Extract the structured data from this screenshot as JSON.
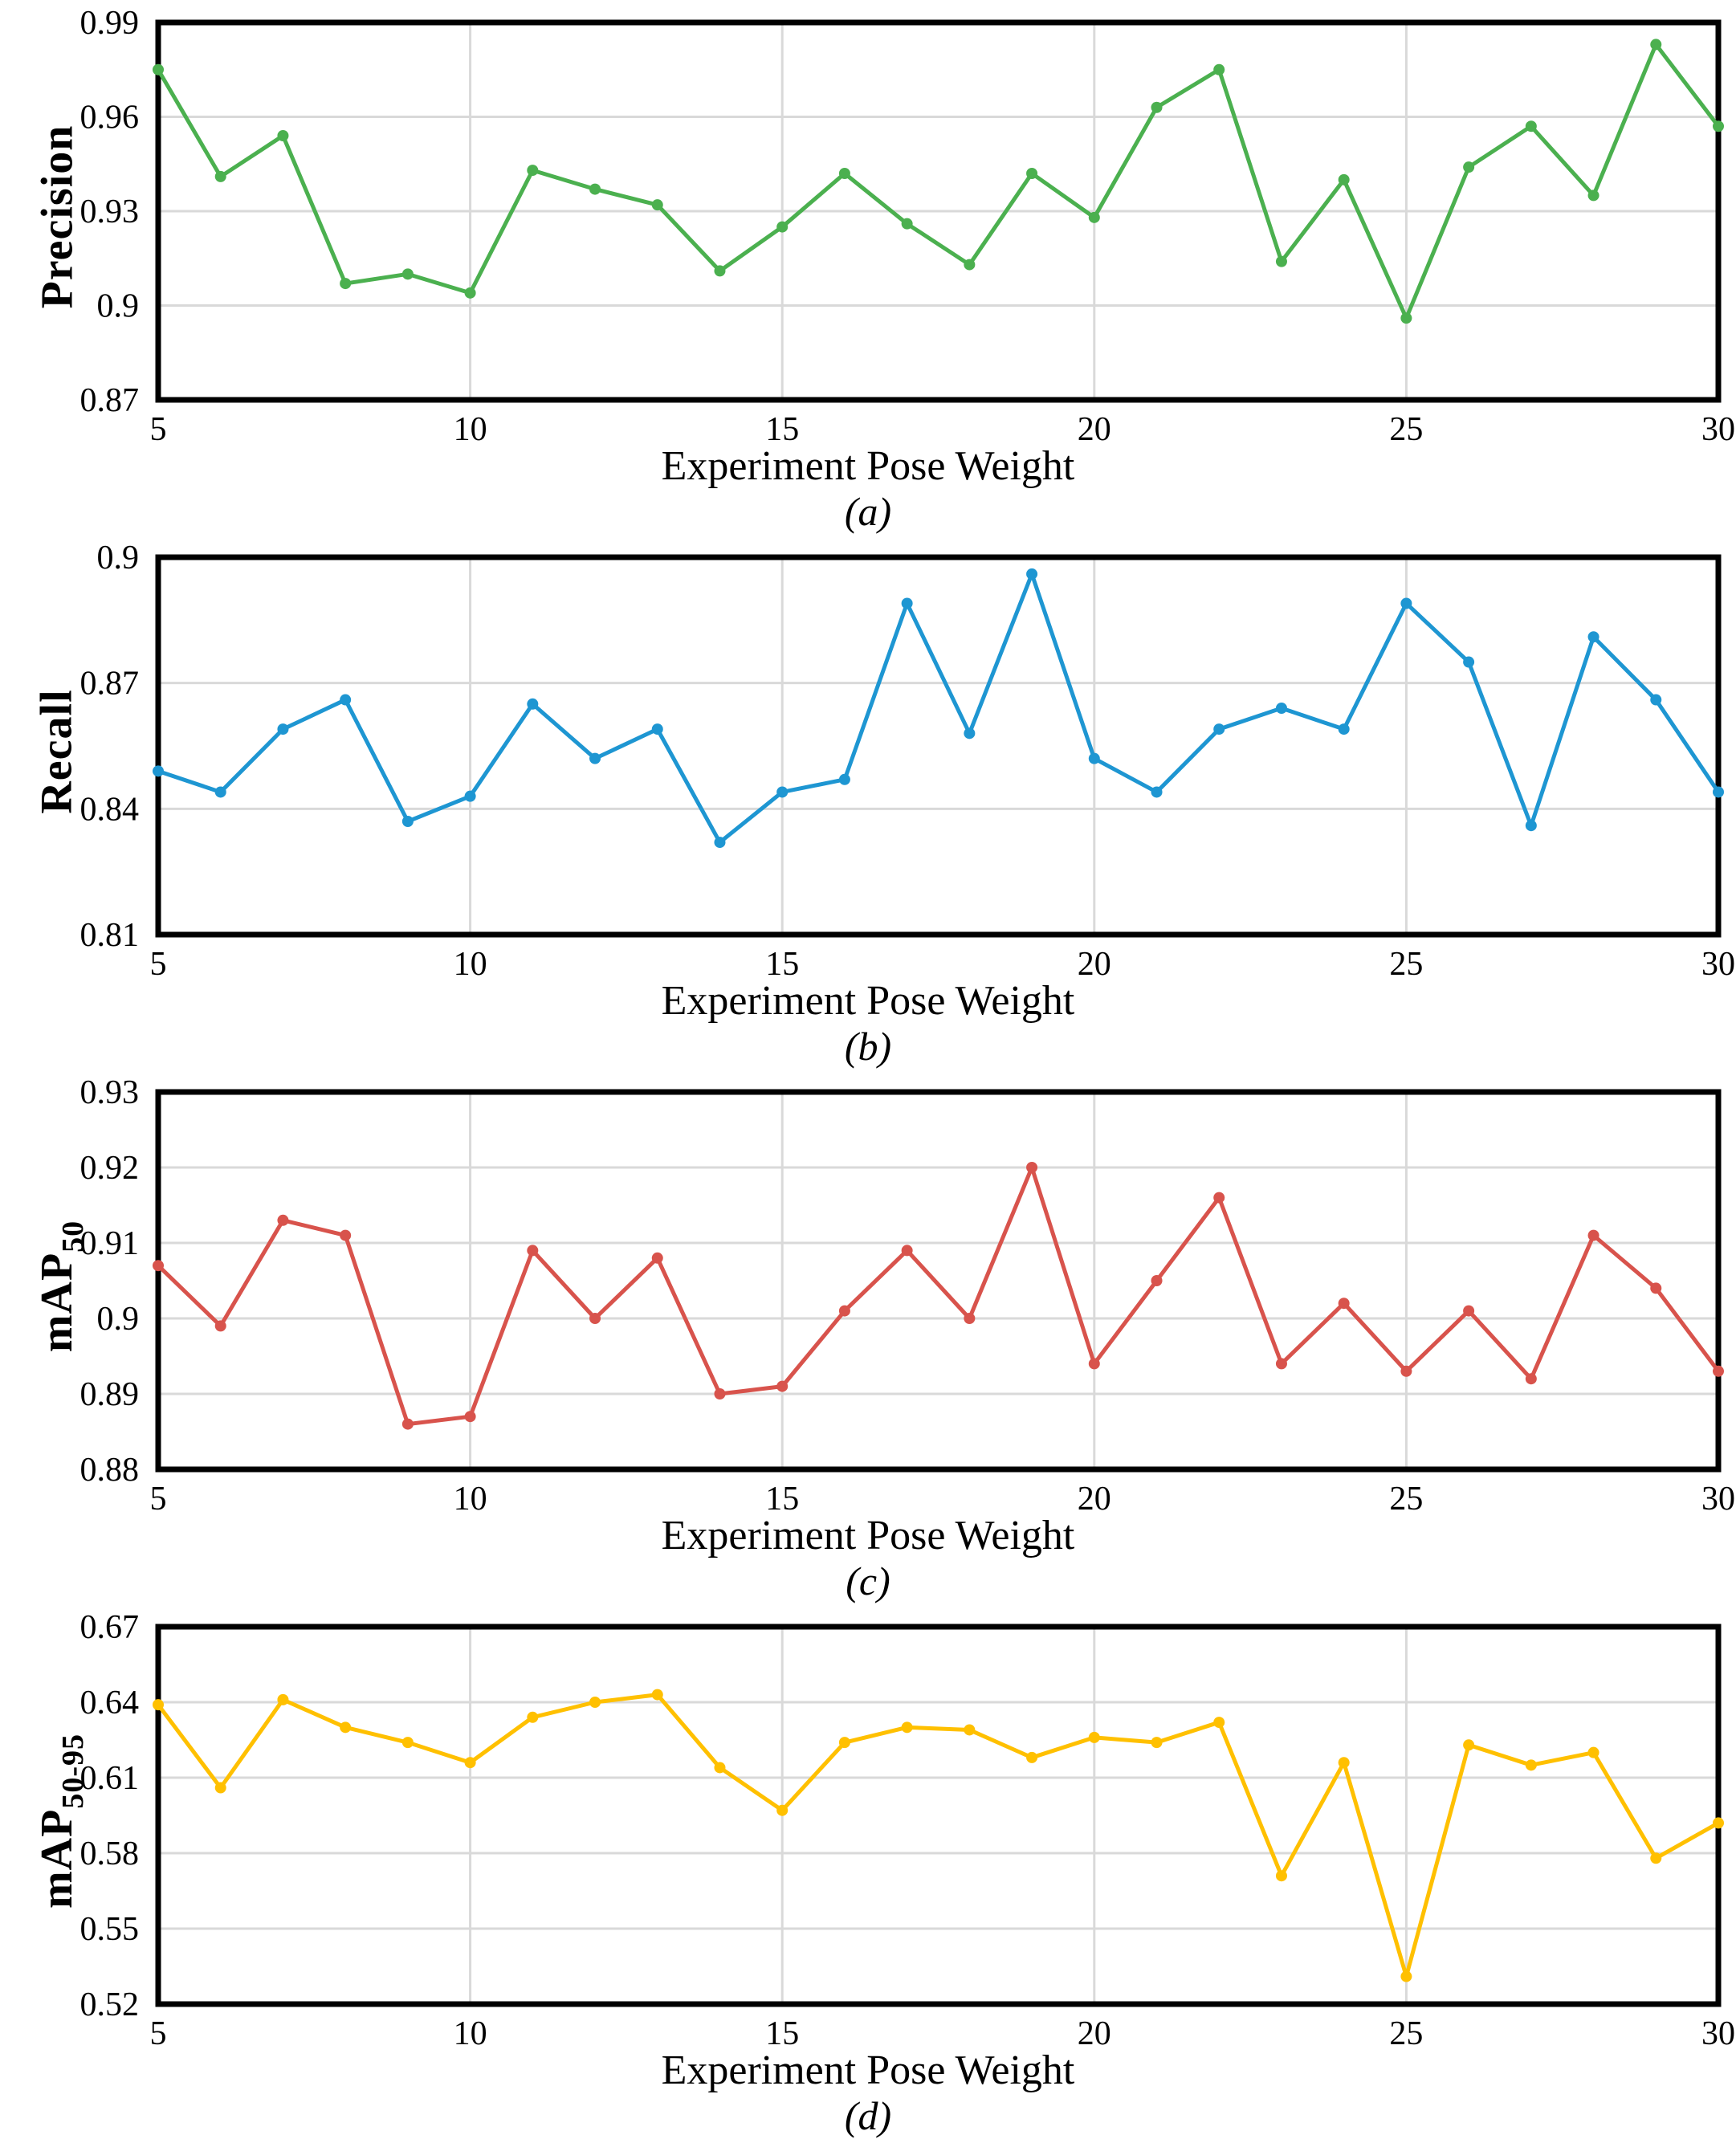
{
  "figure": {
    "xlabel": "Experiment Pose Weight",
    "x_range": [
      5,
      30
    ],
    "x_ticks": [
      5,
      10,
      15,
      20,
      25,
      30
    ],
    "x_tick_labels": [
      "5",
      "10",
      "15",
      "20",
      "25",
      "30"
    ],
    "frame_color": "#000000",
    "grid_color": "#d9d9d9",
    "background": "#ffffff"
  },
  "chart_data": [
    {
      "type": "line",
      "panel": "a",
      "caption": "(a)",
      "title": "",
      "ylabel": "Precision",
      "ylabel_sub": "",
      "xlabel": "Experiment Pose Weight",
      "color": "#4bb04f",
      "ylim": [
        0.87,
        0.99
      ],
      "yticks": [
        0.87,
        0.9,
        0.93,
        0.96,
        0.99
      ],
      "ytick_labels": [
        "0.87",
        "0.9",
        "0.93",
        "0.96",
        "0.99"
      ],
      "grid": true,
      "legend": "none",
      "x": [
        5,
        6,
        7,
        8,
        9,
        10,
        11,
        12,
        13,
        14,
        15,
        16,
        17,
        18,
        19,
        20,
        21,
        22,
        23,
        24,
        25,
        26,
        27,
        28,
        29,
        30
      ],
      "values": [
        0.975,
        0.941,
        0.954,
        0.907,
        0.91,
        0.904,
        0.943,
        0.937,
        0.932,
        0.911,
        0.925,
        0.942,
        0.926,
        0.913,
        0.942,
        0.928,
        0.963,
        0.975,
        0.914,
        0.94,
        0.896,
        0.944,
        0.957,
        0.935,
        0.983,
        0.957
      ]
    },
    {
      "type": "line",
      "panel": "b",
      "caption": "(b)",
      "title": "",
      "ylabel": "Recall",
      "ylabel_sub": "",
      "xlabel": "Experiment Pose Weight",
      "color": "#1e96d2",
      "ylim": [
        0.81,
        0.9
      ],
      "yticks": [
        0.81,
        0.84,
        0.87,
        0.9
      ],
      "ytick_labels": [
        "0.81",
        "0.84",
        "0.87",
        "0.9"
      ],
      "grid": true,
      "legend": "none",
      "x": [
        5,
        6,
        7,
        8,
        9,
        10,
        11,
        12,
        13,
        14,
        15,
        16,
        17,
        18,
        19,
        20,
        21,
        22,
        23,
        24,
        25,
        26,
        27,
        28,
        29,
        30
      ],
      "values": [
        0.849,
        0.844,
        0.859,
        0.866,
        0.837,
        0.843,
        0.865,
        0.852,
        0.859,
        0.832,
        0.844,
        0.847,
        0.889,
        0.858,
        0.896,
        0.852,
        0.844,
        0.859,
        0.864,
        0.859,
        0.889,
        0.875,
        0.836,
        0.881,
        0.866,
        0.844
      ]
    },
    {
      "type": "line",
      "panel": "c",
      "caption": "(c)",
      "title": "",
      "ylabel": "mAP",
      "ylabel_sub": "50",
      "xlabel": "Experiment Pose Weight",
      "color": "#d8534c",
      "ylim": [
        0.88,
        0.93
      ],
      "yticks": [
        0.88,
        0.89,
        0.9,
        0.91,
        0.92,
        0.93
      ],
      "ytick_labels": [
        "0.88",
        "0.89",
        "0.9",
        "0.91",
        "0.92",
        "0.93"
      ],
      "grid": true,
      "legend": "none",
      "x": [
        5,
        6,
        7,
        8,
        9,
        10,
        11,
        12,
        13,
        14,
        15,
        16,
        17,
        18,
        19,
        20,
        21,
        22,
        23,
        24,
        25,
        26,
        27,
        28,
        29,
        30
      ],
      "values": [
        0.907,
        0.899,
        0.913,
        0.911,
        0.886,
        0.887,
        0.909,
        0.9,
        0.908,
        0.89,
        0.891,
        0.901,
        0.909,
        0.9,
        0.92,
        0.894,
        0.905,
        0.916,
        0.894,
        0.902,
        0.893,
        0.901,
        0.892,
        0.911,
        0.904,
        0.893
      ]
    },
    {
      "type": "line",
      "panel": "d",
      "caption": "(d)",
      "title": "",
      "ylabel": "mAP",
      "ylabel_sub": "50-95",
      "xlabel": "Experiment Pose Weight",
      "color": "#ffc000",
      "ylim": [
        0.52,
        0.67
      ],
      "yticks": [
        0.52,
        0.55,
        0.58,
        0.61,
        0.64,
        0.67
      ],
      "ytick_labels": [
        "0.52",
        "0.55",
        "0.58",
        "0.61",
        "0.64",
        "0.67"
      ],
      "grid": true,
      "legend": "none",
      "x": [
        5,
        6,
        7,
        8,
        9,
        10,
        11,
        12,
        13,
        14,
        15,
        16,
        17,
        18,
        19,
        20,
        21,
        22,
        23,
        24,
        25,
        26,
        27,
        28,
        29,
        30
      ],
      "values": [
        0.639,
        0.606,
        0.641,
        0.63,
        0.624,
        0.616,
        0.634,
        0.64,
        0.643,
        0.614,
        0.597,
        0.624,
        0.63,
        0.629,
        0.618,
        0.626,
        0.624,
        0.632,
        0.571,
        0.616,
        0.531,
        0.623,
        0.615,
        0.62,
        0.578,
        0.592
      ]
    }
  ]
}
